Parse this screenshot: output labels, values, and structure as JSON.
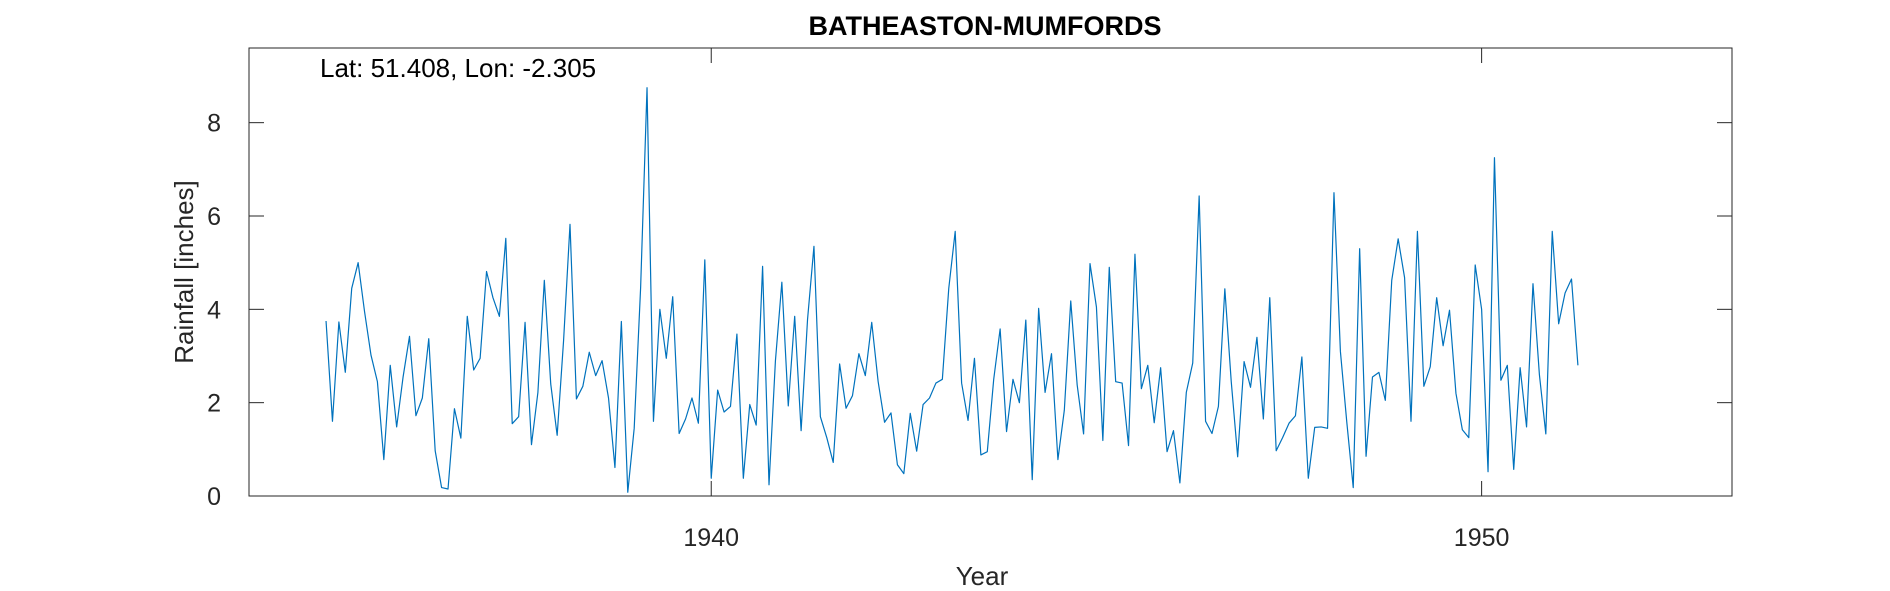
{
  "chart_data": {
    "type": "line",
    "title": "BATHEASTON-MUMFORDS",
    "annotation": "Lat: 51.408, Lon: -2.305",
    "xlabel": "Year",
    "ylabel": "Rainfall [inches]",
    "xlim": [
      1934.0,
      1953.25
    ],
    "ylim": [
      0,
      9.6
    ],
    "x_ticks": [
      1940,
      1950
    ],
    "y_ticks": [
      0,
      2,
      4,
      6,
      8
    ],
    "grid": false,
    "line_color": "#0072BD",
    "series": [
      {
        "start": "1935-01",
        "frequency": "monthly",
        "values": [
          3.75,
          1.6,
          3.73,
          2.65,
          4.45,
          5.0,
          3.95,
          3.02,
          2.45,
          0.78,
          2.8,
          1.48,
          2.55,
          3.42,
          1.72,
          2.1,
          3.37,
          0.97,
          0.18,
          0.15,
          1.87,
          1.24,
          3.85,
          2.7,
          2.95,
          4.81,
          4.25,
          3.85,
          5.52,
          1.55,
          1.7,
          3.72,
          1.1,
          2.22,
          4.62,
          2.4,
          1.3,
          3.33,
          5.82,
          2.08,
          2.35,
          3.08,
          2.58,
          2.9,
          2.1,
          0.61,
          3.74,
          0.08,
          1.45,
          4.46,
          8.75,
          1.6,
          4.0,
          2.95,
          4.27,
          1.34,
          1.65,
          2.1,
          1.56,
          5.06,
          0.38,
          2.27,
          1.8,
          1.92,
          3.47,
          0.38,
          1.96,
          1.52,
          4.92,
          0.24,
          2.9,
          4.58,
          1.93,
          3.85,
          1.4,
          3.78,
          5.35,
          1.7,
          1.25,
          0.72,
          2.83,
          1.88,
          2.15,
          3.05,
          2.58,
          3.72,
          2.45,
          1.58,
          1.78,
          0.67,
          0.48,
          1.77,
          0.96,
          1.96,
          2.1,
          2.42,
          2.5,
          4.45,
          5.67,
          2.42,
          1.62,
          2.95,
          0.88,
          0.95,
          2.5,
          3.58,
          1.38,
          2.5,
          2.0,
          3.77,
          0.35,
          4.02,
          2.22,
          3.05,
          0.78,
          1.84,
          4.18,
          2.38,
          1.33,
          4.98,
          4.05,
          1.19,
          4.9,
          2.45,
          2.42,
          1.08,
          5.18,
          2.3,
          2.8,
          1.57,
          2.75,
          0.95,
          1.4,
          0.28,
          2.22,
          2.85,
          6.43,
          1.6,
          1.34,
          1.92,
          4.44,
          2.45,
          0.84,
          2.88,
          2.33,
          3.4,
          1.65,
          4.25,
          0.97,
          1.25,
          1.56,
          1.72,
          2.98,
          0.38,
          1.47,
          1.48,
          1.45,
          6.5,
          3.1,
          1.58,
          0.18,
          5.3,
          0.85,
          2.55,
          2.65,
          2.05,
          4.62,
          5.51,
          4.68,
          1.6,
          5.67,
          2.35,
          2.77,
          4.25,
          3.22,
          3.98,
          2.2,
          1.42,
          1.25,
          4.95,
          4.0,
          0.52,
          7.25,
          2.48,
          2.8,
          0.57,
          2.75,
          1.48,
          4.55,
          2.6,
          1.33,
          5.67,
          3.69,
          4.35,
          4.65,
          2.8
        ]
      }
    ]
  }
}
